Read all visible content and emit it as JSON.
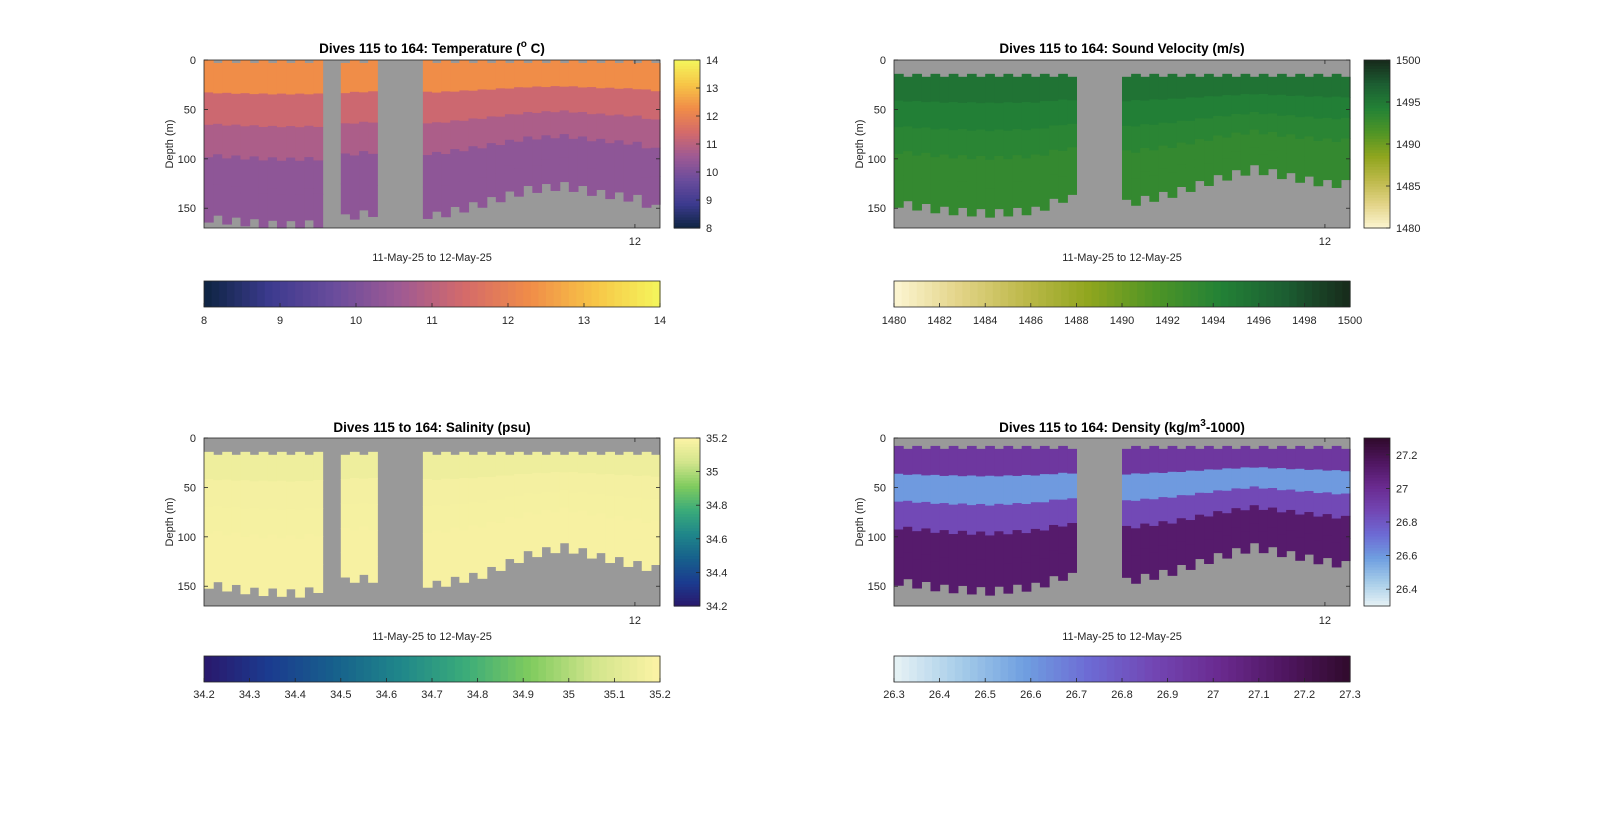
{
  "figure": {
    "background": "#ffffff",
    "no_data_color": "#999999"
  },
  "chart_data": [
    {
      "type": "heatmap",
      "title": "Dives 115 to 164: Temperature (° C)",
      "title_parts": {
        "pre": "Dives 115 to 164: Temperature (",
        "sup": "o",
        "post": " C)"
      },
      "xlabel": "11-May-25 to 12-May-25",
      "ylabel": "Depth (m)",
      "ylim": [
        0,
        170
      ],
      "yticks": [
        0,
        50,
        100,
        150
      ],
      "xtick_labels": [
        "12"
      ],
      "colorbar_range": [
        8,
        14
      ],
      "colorbar_ticks": [
        "8",
        "9",
        "10",
        "11",
        "12",
        "13",
        "14"
      ],
      "horizontal_colorbar_ticks": [
        "8",
        "9",
        "10",
        "11",
        "12",
        "13",
        "14"
      ],
      "colormap": [
        "#0d2440",
        "#3b3a8e",
        "#6a4c9c",
        "#9e5a94",
        "#d46a6a",
        "#f08c48",
        "#f7c547",
        "#f4f65c"
      ],
      "surface_value": 12.3,
      "deep_value": 10.3,
      "near_surface_value": 11.3,
      "top_depth": 0,
      "first_dive": 115,
      "last_dive": 164,
      "gaps": [
        [
          128,
          129
        ],
        [
          134,
          138
        ]
      ],
      "bottom_depth_profile": [
        [
          115,
          160
        ],
        [
          118,
          163
        ],
        [
          123,
          167
        ],
        [
          128,
          165
        ],
        [
          131,
          157
        ],
        [
          134,
          153
        ],
        [
          140,
          157
        ],
        [
          145,
          145
        ],
        [
          150,
          131
        ],
        [
          154,
          127
        ],
        [
          158,
          135
        ],
        [
          162,
          140
        ],
        [
          164,
          150
        ]
      ],
      "left_segment_depth": 165
    },
    {
      "type": "heatmap",
      "title": "Dives 115 to 164: Sound Velocity (m/s)",
      "xlabel": "11-May-25 to 12-May-25",
      "ylabel": "Depth (m)",
      "ylim": [
        0,
        170
      ],
      "yticks": [
        0,
        50,
        100,
        150
      ],
      "xtick_labels": [
        "12"
      ],
      "colorbar_range": [
        1480,
        1500
      ],
      "colorbar_ticks": [
        "1480",
        "1485",
        "1490",
        "1495",
        "1500"
      ],
      "horizontal_colorbar_ticks": [
        "1480",
        "1482",
        "1484",
        "1486",
        "1488",
        "1490",
        "1492",
        "1494",
        "1496",
        "1498",
        "1500"
      ],
      "colormap": [
        "#fdf6d3",
        "#e3d488",
        "#bdb94a",
        "#8fa51e",
        "#4f9526",
        "#238236",
        "#1c5e32",
        "#172a1b"
      ],
      "surface_value": 1495.5,
      "deep_value": 1493.2,
      "near_surface_value": 1494.5,
      "top_depth": 14,
      "first_dive": 115,
      "last_dive": 164,
      "gaps": [
        [
          135,
          139
        ]
      ],
      "bottom_depth_profile": [
        [
          115,
          145
        ],
        [
          120,
          152
        ],
        [
          125,
          155
        ],
        [
          130,
          152
        ],
        [
          133,
          140
        ],
        [
          135,
          140
        ],
        [
          140,
          145
        ],
        [
          145,
          135
        ],
        [
          150,
          120
        ],
        [
          154,
          110
        ],
        [
          158,
          118
        ],
        [
          162,
          125
        ],
        [
          164,
          125
        ]
      ]
    },
    {
      "type": "heatmap",
      "title": "Dives 115 to 164: Salinity (psu)",
      "xlabel": "11-May-25 to 12-May-25",
      "ylabel": "Depth (m)",
      "ylim": [
        0,
        170
      ],
      "yticks": [
        0,
        50,
        100,
        150
      ],
      "xtick_labels": [
        "12"
      ],
      "colorbar_range": [
        34.2,
        35.2
      ],
      "colorbar_ticks": [
        "34.2",
        "34.4",
        "34.6",
        "34.8",
        "35",
        "35.2"
      ],
      "horizontal_colorbar_ticks": [
        "34.2",
        "34.3",
        "34.4",
        "34.5",
        "34.6",
        "34.7",
        "34.8",
        "34.9",
        "35",
        "35.1",
        "35.2"
      ],
      "colormap": [
        "#2a186c",
        "#1b3b8f",
        "#17608c",
        "#1f868a",
        "#3aab7a",
        "#7fcb5e",
        "#d2e58c",
        "#fdf3a6"
      ],
      "surface_value": 35.15,
      "deep_value": 35.18,
      "near_surface_value": 35.17,
      "top_depth": 14,
      "first_dive": 115,
      "last_dive": 164,
      "gaps": [
        [
          128,
          129
        ],
        [
          134,
          138
        ]
      ],
      "bottom_depth_profile": [
        [
          115,
          148
        ],
        [
          120,
          155
        ],
        [
          125,
          157
        ],
        [
          128,
          150
        ],
        [
          131,
          142
        ],
        [
          134,
          142
        ],
        [
          140,
          148
        ],
        [
          145,
          138
        ],
        [
          150,
          118
        ],
        [
          154,
          110
        ],
        [
          158,
          120
        ],
        [
          162,
          128
        ],
        [
          164,
          132
        ]
      ]
    },
    {
      "type": "heatmap",
      "title": "Dives 115 to 164: Density (kg/m³-1000)",
      "title_parts": {
        "pre": "Dives 115 to 164: Density (kg/m",
        "sup": "3",
        "post": "-1000)"
      },
      "xlabel": "11-May-25 to 12-May-25",
      "ylabel": "Depth (m)",
      "ylim": [
        0,
        170
      ],
      "yticks": [
        0,
        50,
        100,
        150
      ],
      "xtick_labels": [
        "12"
      ],
      "colorbar_range": [
        26.3,
        27.3
      ],
      "colorbar_ticks": [
        "26.4",
        "26.6",
        "26.8",
        "27",
        "27.2"
      ],
      "horizontal_colorbar_ticks": [
        "26.3",
        "26.4",
        "26.5",
        "26.6",
        "26.7",
        "26.8",
        "26.9",
        "27",
        "27.1",
        "27.2",
        "27.3"
      ],
      "colormap": [
        "#e8f3f5",
        "#a7cde9",
        "#6f9fe0",
        "#6d6ad4",
        "#7246b3",
        "#6a2a8f",
        "#4f1660",
        "#300a2c"
      ],
      "surface_value": 26.95,
      "deep_value": 27.12,
      "near_surface_value": 26.6,
      "top_depth": 8,
      "first_dive": 115,
      "last_dive": 164,
      "gaps": [
        [
          135,
          139
        ]
      ],
      "bottom_depth_profile": [
        [
          115,
          145
        ],
        [
          120,
          152
        ],
        [
          125,
          155
        ],
        [
          130,
          150
        ],
        [
          133,
          140
        ],
        [
          135,
          140
        ],
        [
          140,
          145
        ],
        [
          145,
          135
        ],
        [
          150,
          120
        ],
        [
          154,
          110
        ],
        [
          158,
          118
        ],
        [
          162,
          125
        ],
        [
          164,
          128
        ]
      ]
    }
  ]
}
